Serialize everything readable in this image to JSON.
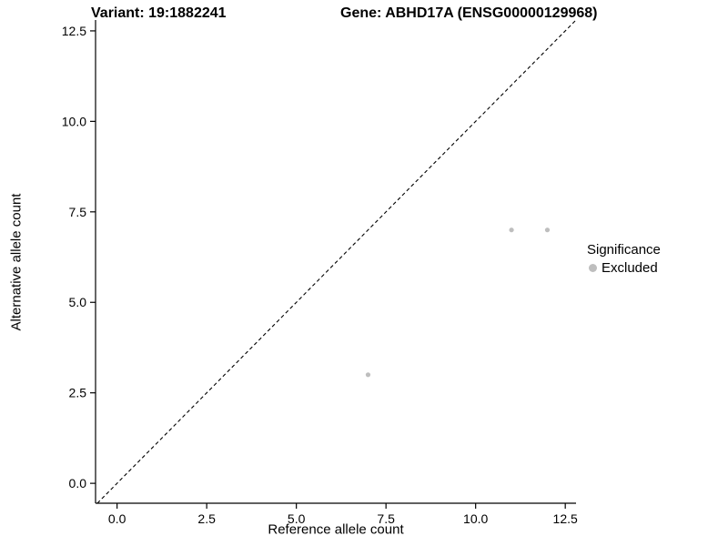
{
  "chart_data": {
    "type": "scatter",
    "title_left": "Variant: 19:1882241",
    "title_right": "Gene: ABHD17A (ENSG00000129968)",
    "xlabel": "Reference allele count",
    "ylabel": "Alternative allele count",
    "xlim": [
      -0.6,
      12.8
    ],
    "ylim": [
      -0.55,
      12.8
    ],
    "x_ticks": [
      0.0,
      2.5,
      5.0,
      7.5,
      10.0,
      12.5
    ],
    "y_ticks": [
      0.0,
      2.5,
      5.0,
      7.5,
      10.0,
      12.5
    ],
    "x_tick_labels": [
      "0.0",
      "2.5",
      "5.0",
      "7.5",
      "10.0",
      "12.5"
    ],
    "y_tick_labels": [
      "0.0",
      "2.5",
      "5.0",
      "7.5",
      "10.0",
      "12.5"
    ],
    "grid": false,
    "background": "#ffffff",
    "axis_color": "#000000",
    "identity_line": {
      "style": "dashed",
      "color": "#000000",
      "from": [
        -0.55,
        -0.55
      ],
      "to": [
        12.8,
        12.8
      ]
    },
    "series": [
      {
        "name": "Excluded",
        "color": "#bebebe",
        "points": [
          [
            7,
            3
          ],
          [
            11,
            7
          ],
          [
            12,
            7
          ]
        ]
      }
    ],
    "legend": {
      "position": "right",
      "title": "Significance",
      "items": [
        {
          "label": "Excluded",
          "color": "#bebebe"
        }
      ]
    }
  }
}
